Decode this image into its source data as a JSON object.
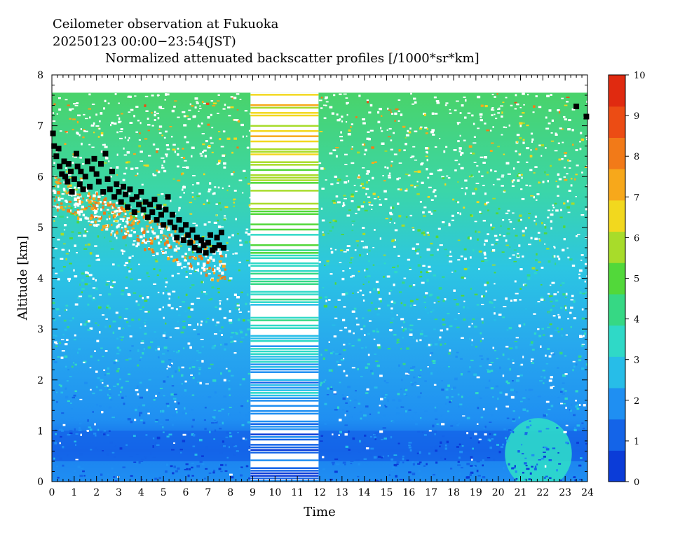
{
  "chart_data": {
    "type": "heatmap",
    "title_lines": [
      "Ceilometer observation at Fukuoka",
      "20250123  00:00−23:54(JST)",
      "Normalized attenuated backscatter profiles [/1000*sr*km]"
    ],
    "xlabel": "Time",
    "ylabel": "Altitude [km]",
    "xlim": [
      0,
      24
    ],
    "ylim": [
      0,
      8
    ],
    "x_ticks": [
      "0",
      "1",
      "2",
      "3",
      "4",
      "5",
      "6",
      "7",
      "8",
      "9",
      "10",
      "11",
      "12",
      "13",
      "14",
      "15",
      "16",
      "17",
      "18",
      "19",
      "20",
      "21",
      "22",
      "23",
      "24"
    ],
    "y_ticks": [
      "0",
      "1",
      "2",
      "3",
      "4",
      "5",
      "6",
      "7",
      "8"
    ],
    "colorbar": {
      "range": [
        0,
        10
      ],
      "ticks": [
        "0",
        "1",
        "2",
        "3",
        "4",
        "5",
        "6",
        "7",
        "8",
        "9",
        "10"
      ],
      "colors": [
        "#0b3cd8",
        "#1464e8",
        "#1f8ff2",
        "#27bde8",
        "#2fd9c7",
        "#36d884",
        "#52d83a",
        "#a8dc2a",
        "#f2d81e",
        "#f7a81b",
        "#f27a18",
        "#ec4c14",
        "#e02a10"
      ]
    },
    "data_top_km": 7.65,
    "gap_stripes": {
      "x_start": 8.9,
      "x_end": 11.95
    },
    "cloud_base_points": [
      [
        0.05,
        6.85
      ],
      [
        0.1,
        6.6
      ],
      [
        0.2,
        6.4
      ],
      [
        0.3,
        6.55
      ],
      [
        0.35,
        6.2
      ],
      [
        0.45,
        6.05
      ],
      [
        0.55,
        6.3
      ],
      [
        0.6,
        6.0
      ],
      [
        0.7,
        5.9
      ],
      [
        0.75,
        6.25
      ],
      [
        0.85,
        6.1
      ],
      [
        0.9,
        5.7
      ],
      [
        1.0,
        5.95
      ],
      [
        1.1,
        6.45
      ],
      [
        1.15,
        6.2
      ],
      [
        1.25,
        5.85
      ],
      [
        1.3,
        6.1
      ],
      [
        1.4,
        5.75
      ],
      [
        1.5,
        6.0
      ],
      [
        1.6,
        6.3
      ],
      [
        1.7,
        5.8
      ],
      [
        1.8,
        6.15
      ],
      [
        1.9,
        6.35
      ],
      [
        2.0,
        6.05
      ],
      [
        2.1,
        5.9
      ],
      [
        2.2,
        6.25
      ],
      [
        2.3,
        5.7
      ],
      [
        2.4,
        6.45
      ],
      [
        2.5,
        5.95
      ],
      [
        2.6,
        5.75
      ],
      [
        2.7,
        6.1
      ],
      [
        2.8,
        5.6
      ],
      [
        2.9,
        5.85
      ],
      [
        3.0,
        5.7
      ],
      [
        3.1,
        5.5
      ],
      [
        3.2,
        5.8
      ],
      [
        3.3,
        5.65
      ],
      [
        3.4,
        5.4
      ],
      [
        3.5,
        5.75
      ],
      [
        3.6,
        5.55
      ],
      [
        3.7,
        5.3
      ],
      [
        3.8,
        5.6
      ],
      [
        3.9,
        5.45
      ],
      [
        4.0,
        5.7
      ],
      [
        4.1,
        5.35
      ],
      [
        4.2,
        5.5
      ],
      [
        4.3,
        5.2
      ],
      [
        4.4,
        5.45
      ],
      [
        4.5,
        5.3
      ],
      [
        4.6,
        5.55
      ],
      [
        4.7,
        5.15
      ],
      [
        4.8,
        5.4
      ],
      [
        4.9,
        5.25
      ],
      [
        5.0,
        5.05
      ],
      [
        5.1,
        5.35
      ],
      [
        5.2,
        5.6
      ],
      [
        5.3,
        5.1
      ],
      [
        5.4,
        5.25
      ],
      [
        5.5,
        5.0
      ],
      [
        5.6,
        4.8
      ],
      [
        5.7,
        5.15
      ],
      [
        5.8,
        4.95
      ],
      [
        5.9,
        4.75
      ],
      [
        6.0,
        5.05
      ],
      [
        6.1,
        4.85
      ],
      [
        6.2,
        4.7
      ],
      [
        6.3,
        4.95
      ],
      [
        6.4,
        4.6
      ],
      [
        6.5,
        4.8
      ],
      [
        6.6,
        4.55
      ],
      [
        6.7,
        4.75
      ],
      [
        6.8,
        4.65
      ],
      [
        6.9,
        4.5
      ],
      [
        7.0,
        4.7
      ],
      [
        7.1,
        4.85
      ],
      [
        7.2,
        4.55
      ],
      [
        7.3,
        4.6
      ],
      [
        7.4,
        4.8
      ],
      [
        7.5,
        4.65
      ],
      [
        7.6,
        4.9
      ],
      [
        7.7,
        4.6
      ],
      [
        23.5,
        7.38
      ],
      [
        23.95,
        7.18
      ]
    ]
  }
}
